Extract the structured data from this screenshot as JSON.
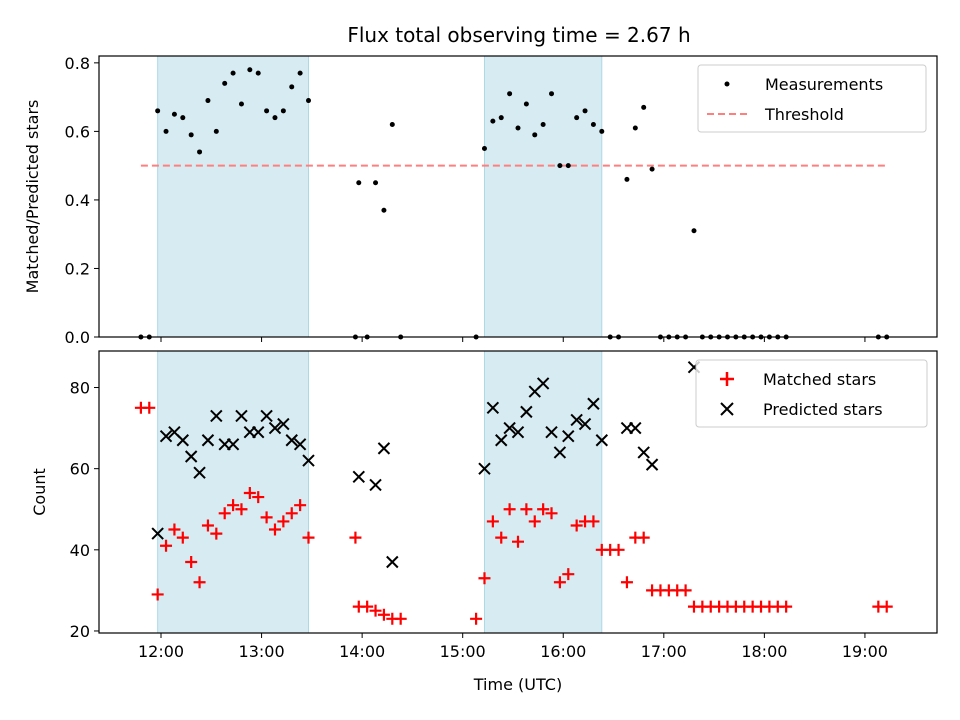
{
  "chart_data": {
    "title": "Flux total observing time = 2.67 h",
    "shaded_intervals": [
      [
        "11:58",
        "13:28"
      ],
      [
        "15:13",
        "16:23"
      ]
    ],
    "shading_color": "#add8e6",
    "panels": [
      {
        "type": "scatter",
        "ylabel": "Matched/Predicted stars",
        "ylim": [
          0,
          0.82
        ],
        "yticks": [
          "0.0",
          "0.2",
          "0.4",
          "0.6",
          "0.8"
        ],
        "grid": false,
        "legend_position": "upper right",
        "threshold": {
          "name": "Threshold",
          "value": 0.5,
          "x_range": [
            "11:48",
            "19:13"
          ],
          "color": "#ff7f7f",
          "style": "dashed"
        },
        "series": [
          {
            "name": "Measurements",
            "marker": "dot",
            "color": "#000000",
            "points": [
              [
                "11:48",
                0
              ],
              [
                "11:53",
                0
              ],
              [
                "11:58",
                0.66
              ],
              [
                "12:03",
                0.6
              ],
              [
                "12:08",
                0.65
              ],
              [
                "12:13",
                0.64
              ],
              [
                "12:18",
                0.59
              ],
              [
                "12:23",
                0.54
              ],
              [
                "12:28",
                0.69
              ],
              [
                "12:33",
                0.6
              ],
              [
                "12:38",
                0.74
              ],
              [
                "12:43",
                0.77
              ],
              [
                "12:48",
                0.68
              ],
              [
                "12:53",
                0.78
              ],
              [
                "12:58",
                0.77
              ],
              [
                "13:03",
                0.66
              ],
              [
                "13:08",
                0.64
              ],
              [
                "13:13",
                0.66
              ],
              [
                "13:18",
                0.73
              ],
              [
                "13:23",
                0.77
              ],
              [
                "13:28",
                0.69
              ],
              [
                "13:56",
                0
              ],
              [
                "13:58",
                0.45
              ],
              [
                "14:03",
                0
              ],
              [
                "14:08",
                0.45
              ],
              [
                "14:13",
                0.37
              ],
              [
                "14:18",
                0.62
              ],
              [
                "14:23",
                0
              ],
              [
                "15:08",
                0
              ],
              [
                "15:13",
                0.55
              ],
              [
                "15:18",
                0.63
              ],
              [
                "15:23",
                0.64
              ],
              [
                "15:28",
                0.71
              ],
              [
                "15:33",
                0.61
              ],
              [
                "15:38",
                0.68
              ],
              [
                "15:43",
                0.59
              ],
              [
                "15:48",
                0.62
              ],
              [
                "15:53",
                0.71
              ],
              [
                "15:58",
                0.5
              ],
              [
                "16:03",
                0.5
              ],
              [
                "16:08",
                0.64
              ],
              [
                "16:13",
                0.66
              ],
              [
                "16:18",
                0.62
              ],
              [
                "16:23",
                0.6
              ],
              [
                "16:28",
                0
              ],
              [
                "16:33",
                0
              ],
              [
                "16:38",
                0.46
              ],
              [
                "16:43",
                0.61
              ],
              [
                "16:48",
                0.67
              ],
              [
                "16:53",
                0.49
              ],
              [
                "16:58",
                0
              ],
              [
                "17:03",
                0
              ],
              [
                "17:08",
                0
              ],
              [
                "17:13",
                0
              ],
              [
                "17:18",
                0.31
              ],
              [
                "17:23",
                0
              ],
              [
                "17:28",
                0
              ],
              [
                "17:33",
                0
              ],
              [
                "17:38",
                0
              ],
              [
                "17:43",
                0
              ],
              [
                "17:48",
                0
              ],
              [
                "17:53",
                0
              ],
              [
                "17:58",
                0
              ],
              [
                "18:03",
                0
              ],
              [
                "18:08",
                0
              ],
              [
                "18:13",
                0
              ],
              [
                "19:08",
                0
              ],
              [
                "19:13",
                0
              ]
            ]
          }
        ]
      },
      {
        "type": "scatter",
        "ylabel": "Count",
        "xlabel": "Time (UTC)",
        "ylim": [
          19.5,
          89
        ],
        "yticks": [
          "20",
          "40",
          "60",
          "80"
        ],
        "xlim": [
          "11:23",
          "19:43"
        ],
        "xtick_values": [
          "12:00",
          "13:00",
          "14:00",
          "15:00",
          "16:00",
          "17:00",
          "18:00",
          "19:00"
        ],
        "xticks": [
          "12:00",
          "13:00",
          "14:00",
          "15:00",
          "16:00",
          "17:00",
          "18:00",
          "19:00"
        ],
        "grid": false,
        "legend_position": "upper right",
        "series": [
          {
            "name": "Matched stars",
            "marker": "plus",
            "color": "#ff0000",
            "points": [
              [
                "11:48",
                75
              ],
              [
                "11:53",
                75
              ],
              [
                "11:58",
                29
              ],
              [
                "12:03",
                41
              ],
              [
                "12:08",
                45
              ],
              [
                "12:13",
                43
              ],
              [
                "12:18",
                37
              ],
              [
                "12:23",
                32
              ],
              [
                "12:28",
                46
              ],
              [
                "12:33",
                44
              ],
              [
                "12:38",
                49
              ],
              [
                "12:43",
                51
              ],
              [
                "12:48",
                50
              ],
              [
                "12:53",
                54
              ],
              [
                "12:58",
                53
              ],
              [
                "13:03",
                48
              ],
              [
                "13:08",
                45
              ],
              [
                "13:13",
                47
              ],
              [
                "13:18",
                49
              ],
              [
                "13:23",
                51
              ],
              [
                "13:28",
                43
              ],
              [
                "13:56",
                43
              ],
              [
                "13:58",
                26
              ],
              [
                "14:03",
                26
              ],
              [
                "14:08",
                25
              ],
              [
                "14:13",
                24
              ],
              [
                "14:18",
                23
              ],
              [
                "14:23",
                23
              ],
              [
                "15:08",
                23
              ],
              [
                "15:13",
                33
              ],
              [
                "15:18",
                47
              ],
              [
                "15:23",
                43
              ],
              [
                "15:28",
                50
              ],
              [
                "15:33",
                42
              ],
              [
                "15:38",
                50
              ],
              [
                "15:43",
                47
              ],
              [
                "15:48",
                50
              ],
              [
                "15:53",
                49
              ],
              [
                "15:58",
                32
              ],
              [
                "16:03",
                34
              ],
              [
                "16:08",
                46
              ],
              [
                "16:13",
                47
              ],
              [
                "16:18",
                47
              ],
              [
                "16:23",
                40
              ],
              [
                "16:28",
                40
              ],
              [
                "16:33",
                40
              ],
              [
                "16:38",
                32
              ],
              [
                "16:43",
                43
              ],
              [
                "16:48",
                43
              ],
              [
                "16:53",
                30
              ],
              [
                "16:58",
                30
              ],
              [
                "17:03",
                30
              ],
              [
                "17:08",
                30
              ],
              [
                "17:13",
                30
              ],
              [
                "17:18",
                26
              ],
              [
                "17:23",
                26
              ],
              [
                "17:28",
                26
              ],
              [
                "17:33",
                26
              ],
              [
                "17:38",
                26
              ],
              [
                "17:43",
                26
              ],
              [
                "17:48",
                26
              ],
              [
                "17:53",
                26
              ],
              [
                "17:58",
                26
              ],
              [
                "18:03",
                26
              ],
              [
                "18:08",
                26
              ],
              [
                "18:13",
                26
              ],
              [
                "19:08",
                26
              ],
              [
                "19:13",
                26
              ]
            ]
          },
          {
            "name": "Predicted stars",
            "marker": "x",
            "color": "#000000",
            "points": [
              [
                "11:58",
                44
              ],
              [
                "12:03",
                68
              ],
              [
                "12:08",
                69
              ],
              [
                "12:13",
                67
              ],
              [
                "12:18",
                63
              ],
              [
                "12:23",
                59
              ],
              [
                "12:28",
                67
              ],
              [
                "12:33",
                73
              ],
              [
                "12:38",
                66
              ],
              [
                "12:43",
                66
              ],
              [
                "12:48",
                73
              ],
              [
                "12:53",
                69
              ],
              [
                "12:58",
                69
              ],
              [
                "13:03",
                73
              ],
              [
                "13:08",
                70
              ],
              [
                "13:13",
                71
              ],
              [
                "13:18",
                67
              ],
              [
                "13:23",
                66
              ],
              [
                "13:28",
                62
              ],
              [
                "13:58",
                58
              ],
              [
                "14:08",
                56
              ],
              [
                "14:13",
                65
              ],
              [
                "14:18",
                37
              ],
              [
                "15:13",
                60
              ],
              [
                "15:18",
                75
              ],
              [
                "15:23",
                67
              ],
              [
                "15:28",
                70
              ],
              [
                "15:33",
                69
              ],
              [
                "15:38",
                74
              ],
              [
                "15:43",
                79
              ],
              [
                "15:48",
                81
              ],
              [
                "15:53",
                69
              ],
              [
                "15:58",
                64
              ],
              [
                "16:03",
                68
              ],
              [
                "16:08",
                72
              ],
              [
                "16:13",
                71
              ],
              [
                "16:18",
                76
              ],
              [
                "16:23",
                67
              ],
              [
                "16:38",
                70
              ],
              [
                "16:43",
                70
              ],
              [
                "16:48",
                64
              ],
              [
                "16:53",
                61
              ],
              [
                "17:18",
                85
              ]
            ]
          }
        ]
      }
    ]
  }
}
